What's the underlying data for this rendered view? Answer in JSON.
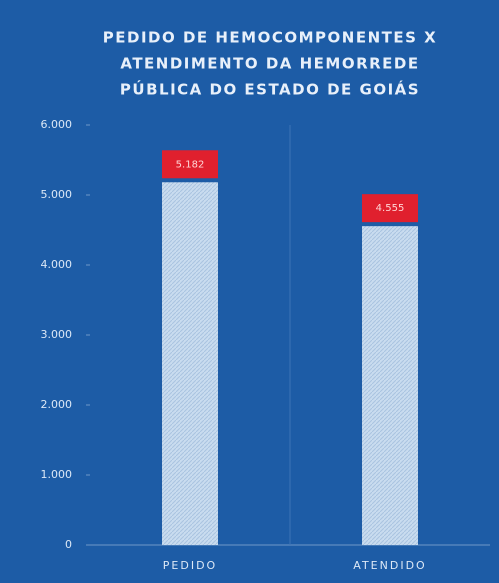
{
  "chart_data": {
    "type": "bar",
    "title": [
      "PEDIDO DE HEMOCOMPONENTES X",
      "ATENDIMENTO DA HEMORREDE",
      "PÚBLICA DO ESTADO DE GOIÁS"
    ],
    "categories": [
      "PEDIDO",
      "ATENDIDO"
    ],
    "values": [
      5182,
      4555
    ],
    "value_labels": [
      "5.182",
      "4.555"
    ],
    "color": "#c9dcef",
    "label_color": "#e0202e",
    "ylim": [
      0,
      6000
    ],
    "yticks": [
      0,
      {
        "value": 1000,
        "label": "1.000"
      },
      {
        "value": 2000,
        "label": "2.000"
      },
      {
        "value": 3000,
        "label": "3.000"
      },
      {
        "value": 4000,
        "label": "4.000"
      },
      {
        "value": 5000,
        "label": "5.000"
      },
      {
        "value": 6000,
        "label": "6.000"
      }
    ],
    "grid": false
  }
}
